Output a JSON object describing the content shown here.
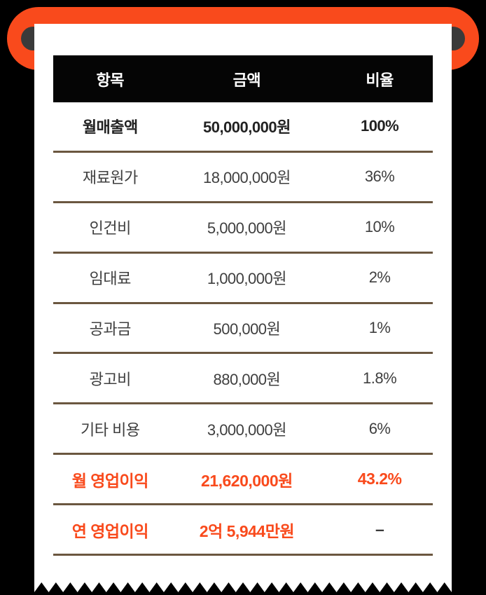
{
  "table": {
    "columns": [
      {
        "label": "항목"
      },
      {
        "label": "금액"
      },
      {
        "label": "비율"
      }
    ],
    "rows": [
      {
        "item": "월매출액",
        "amount": "50,000,000원",
        "ratio": "100%",
        "emphasis": "bold",
        "ratio_muted": false
      },
      {
        "item": "재료원가",
        "amount": "18,000,000원",
        "ratio": "36%",
        "emphasis": "none",
        "ratio_muted": false
      },
      {
        "item": "인건비",
        "amount": "5,000,000원",
        "ratio": "10%",
        "emphasis": "none",
        "ratio_muted": false
      },
      {
        "item": "임대료",
        "amount": "1,000,000원",
        "ratio": "2%",
        "emphasis": "none",
        "ratio_muted": false
      },
      {
        "item": "공과금",
        "amount": "500,000원",
        "ratio": "1%",
        "emphasis": "none",
        "ratio_muted": false
      },
      {
        "item": "광고비",
        "amount": "880,000원",
        "ratio": "1.8%",
        "emphasis": "none",
        "ratio_muted": false
      },
      {
        "item": "기타 비용",
        "amount": "3,000,000원",
        "ratio": "6%",
        "emphasis": "none",
        "ratio_muted": false
      },
      {
        "item": "월 영업이익",
        "amount": "21,620,000원",
        "ratio": "43.2%",
        "emphasis": "accent",
        "ratio_muted": false
      },
      {
        "item": "연 영업이익",
        "amount": "2억 5,944만원",
        "ratio": "–",
        "emphasis": "accent",
        "ratio_muted": true
      }
    ]
  },
  "chart_data": {
    "type": "table",
    "columns": [
      "항목",
      "금액",
      "비율"
    ],
    "rows": [
      [
        "월매출액",
        "50,000,000원",
        "100%"
      ],
      [
        "재료원가",
        "18,000,000원",
        "36%"
      ],
      [
        "인건비",
        "5,000,000원",
        "10%"
      ],
      [
        "임대료",
        "1,000,000원",
        "2%"
      ],
      [
        "공과금",
        "500,000원",
        "1%"
      ],
      [
        "광고비",
        "880,000원",
        "1.8%"
      ],
      [
        "기타 비용",
        "3,000,000원",
        "6%"
      ],
      [
        "월 영업이익",
        "21,620,000원",
        "43.2%"
      ],
      [
        "연 영업이익",
        "2억 5,944만원",
        "–"
      ]
    ],
    "notes": "receipt-style cost breakdown; monthly sales 50,000,000 KRW; accent rows are operating profit"
  },
  "colors": {
    "background": "#000000",
    "accent_orange": "#f94a1c",
    "axle_gray": "#3a3a3a",
    "paper_white": "#ffffff",
    "header_bg": "#050505",
    "divider_brown": "#6b5740",
    "body_text": "#3f3f3f",
    "bold_text": "#222222"
  }
}
